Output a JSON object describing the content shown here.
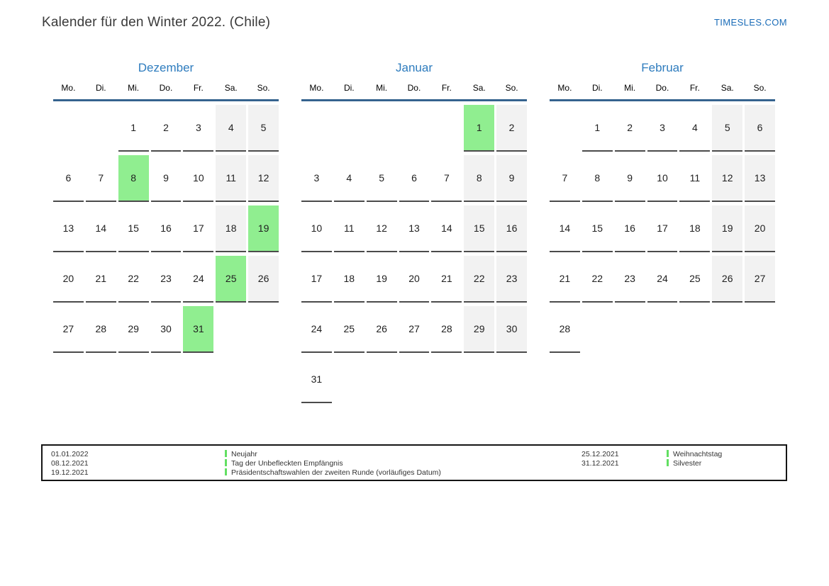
{
  "page": {
    "title": "Kalender für den Winter 2022. (Chile)",
    "site_link": "TIMESLES.COM"
  },
  "colors": {
    "accent_blue": "#2e7cbe",
    "header_line_blue": "#35638e",
    "holiday_green": "#90ee90",
    "weekend_gray": "#f2f2f2",
    "legend_marker_green": "#62df62",
    "cell_border_gray": "#4b4b4b"
  },
  "calendar": {
    "weekdays": [
      "Mo.",
      "Di.",
      "Mi.",
      "Do.",
      "Fr.",
      "Sa.",
      "So."
    ],
    "months": [
      {
        "name": "Dezember",
        "holidays": [
          8,
          19,
          25,
          31
        ],
        "cells": [
          null,
          null,
          1,
          2,
          3,
          4,
          5,
          6,
          7,
          8,
          9,
          10,
          11,
          12,
          13,
          14,
          15,
          16,
          17,
          18,
          19,
          20,
          21,
          22,
          23,
          24,
          25,
          26,
          27,
          28,
          29,
          30,
          31,
          null,
          null
        ]
      },
      {
        "name": "Januar",
        "holidays": [
          1
        ],
        "cells": [
          null,
          null,
          null,
          null,
          null,
          1,
          2,
          3,
          4,
          5,
          6,
          7,
          8,
          9,
          10,
          11,
          12,
          13,
          14,
          15,
          16,
          17,
          18,
          19,
          20,
          21,
          22,
          23,
          24,
          25,
          26,
          27,
          28,
          29,
          30,
          31,
          null,
          null,
          null,
          null,
          null,
          null
        ]
      },
      {
        "name": "Februar",
        "holidays": [],
        "cells": [
          null,
          1,
          2,
          3,
          4,
          5,
          6,
          7,
          8,
          9,
          10,
          11,
          12,
          13,
          14,
          15,
          16,
          17,
          18,
          19,
          20,
          21,
          22,
          23,
          24,
          25,
          26,
          27,
          28,
          null,
          null,
          null,
          null,
          null,
          null
        ]
      }
    ]
  },
  "legend": {
    "columns": [
      {
        "entries": [
          {
            "date": "01.01.2022",
            "label": "Neujahr"
          },
          {
            "date": "08.12.2021",
            "label": "Tag der Unbefleckten Empfängnis"
          },
          {
            "date": "19.12.2021",
            "label": "Präsidentschaftswahlen der zweiten Runde (vorläufiges Datum)"
          }
        ]
      },
      {
        "entries": [
          {
            "date": "25.12.2021",
            "label": "Weihnachtstag"
          },
          {
            "date": "31.12.2021",
            "label": "Silvester"
          }
        ]
      }
    ]
  }
}
